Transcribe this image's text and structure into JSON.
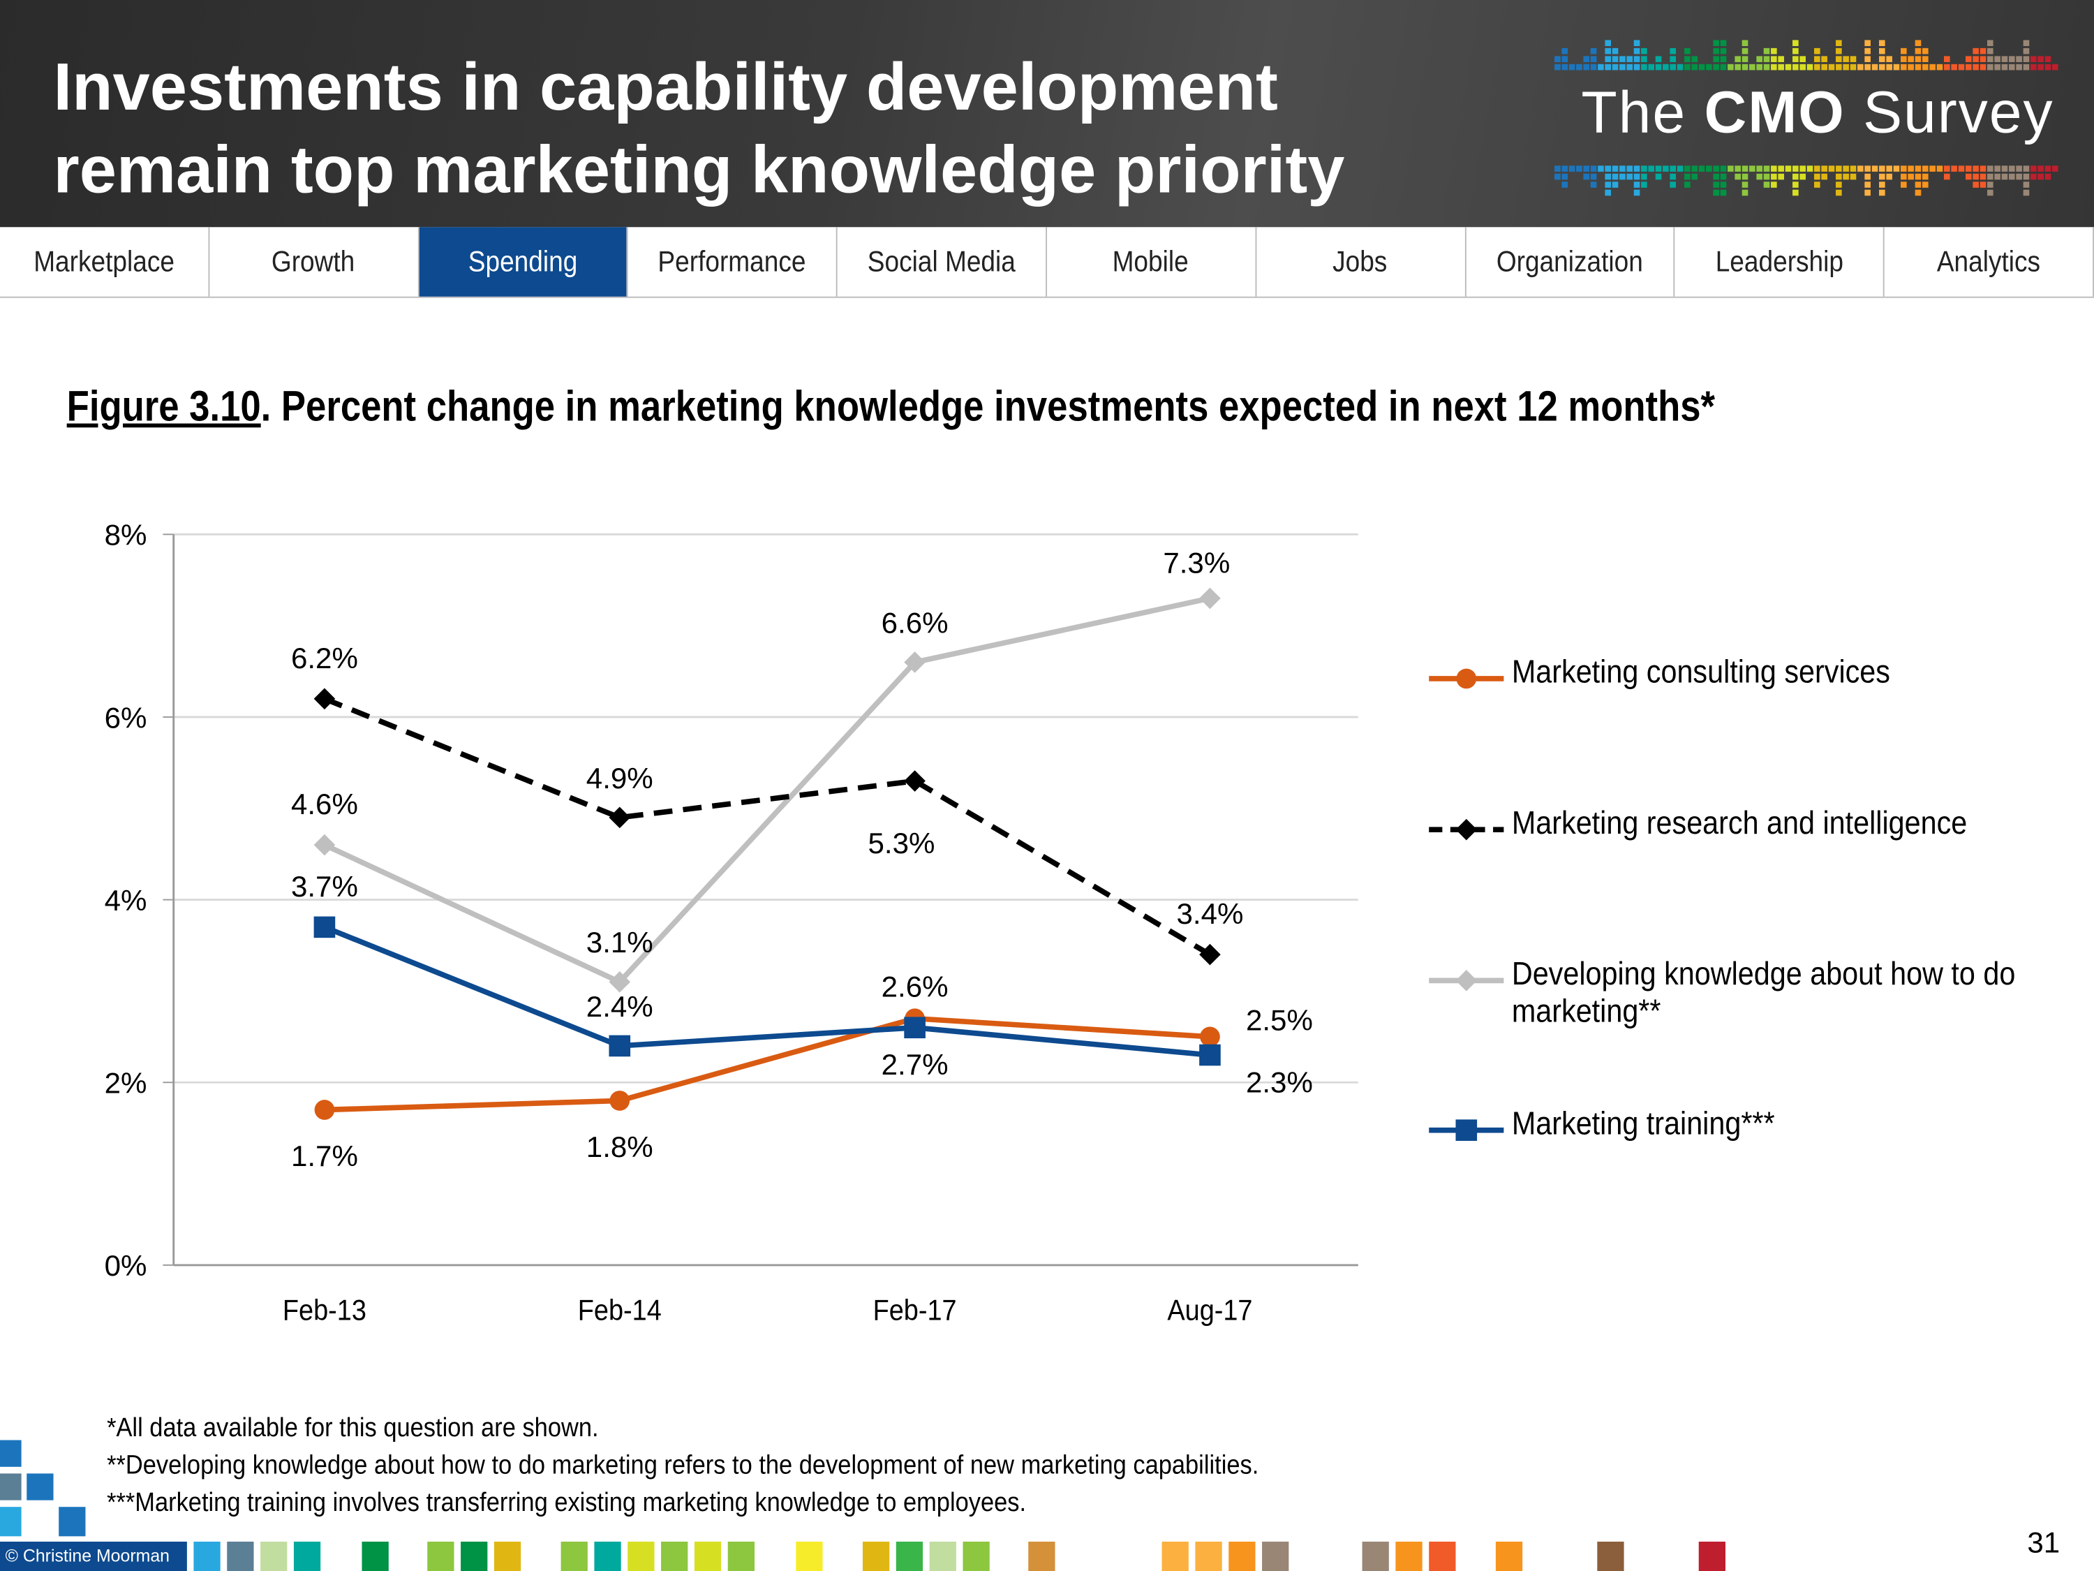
{
  "header": {
    "title_line1": "Investments in capability development",
    "title_line2": "remain top marketing knowledge priority",
    "logo": {
      "the": "The",
      "cmo": "CMO",
      "survey": "Survey"
    }
  },
  "nav": {
    "active": "Spending",
    "tabs": [
      "Marketplace",
      "Growth",
      "Spending",
      "Performance",
      "Social Media",
      "Mobile",
      "Jobs",
      "Organization",
      "Leadership",
      "Analytics"
    ]
  },
  "figure": {
    "number": "Figure 3.10",
    "title": ". Percent change in marketing knowledge investments expected in next 12 months*"
  },
  "chart_data": {
    "type": "line",
    "categories": [
      "Feb-13",
      "Feb-14",
      "Feb-17",
      "Aug-17"
    ],
    "ylim": [
      0,
      8
    ],
    "yticks": [
      "0%",
      "2%",
      "4%",
      "6%",
      "8%"
    ],
    "grid": true,
    "legend_placement": "right",
    "series": [
      {
        "name": "Marketing consulting services",
        "values": [
          1.7,
          1.8,
          2.7,
          2.5
        ],
        "labels": [
          "1.7%",
          "1.8%",
          "2.7%",
          "2.5%"
        ],
        "color": "#d95b12",
        "marker": "circle",
        "dash": false
      },
      {
        "name": "Marketing research and intelligence",
        "values": [
          6.2,
          4.9,
          5.3,
          3.4
        ],
        "labels": [
          "6.2%",
          "4.9%",
          "5.3%",
          "3.4%"
        ],
        "color": "#000000",
        "marker": "diamond",
        "dash": true
      },
      {
        "name": "Developing knowledge about how to do marketing**",
        "values": [
          4.6,
          3.1,
          6.6,
          7.3
        ],
        "labels": [
          "4.6%",
          "3.1%",
          "6.6%",
          "7.3%"
        ],
        "color": "#bfbfbf",
        "marker": "diamond",
        "dash": false
      },
      {
        "name": "Marketing training***",
        "values": [
          3.7,
          2.4,
          2.6,
          2.3
        ],
        "labels": [
          "3.7%",
          "2.4%",
          "2.6%",
          "2.3%"
        ],
        "color": "#0d4a8f",
        "marker": "square",
        "dash": false
      }
    ]
  },
  "notes": [
    "*All data available for this question are shown.",
    "**Developing knowledge about how to do marketing refers to the development of new marketing capabilities.",
    "***Marketing training involves transferring existing marketing knowledge to employees."
  ],
  "footer": {
    "copyright": "© Christine Moorman",
    "page": "31",
    "colors": [
      "#29a8e0",
      "#5b7f95",
      "#c1dda0",
      "#00a99d",
      "#009245",
      "#8dc63f",
      "#009245",
      "#e0b712",
      "#8dc63f",
      "#00a99d",
      "#d7df23",
      "#8dc63f",
      "#d7df23",
      "#8dc63f",
      "#f7ec2a",
      "#e0b712",
      "#39b54a",
      "#c1dda0",
      "#8dc63f",
      "#d4913a",
      "#fbb040",
      "#fbb040",
      "#f7941d",
      "#998675",
      "#998675",
      "#f7941d",
      "#f15a29",
      "#f7941d",
      "#8b5e3c",
      "#be1e2d"
    ]
  }
}
